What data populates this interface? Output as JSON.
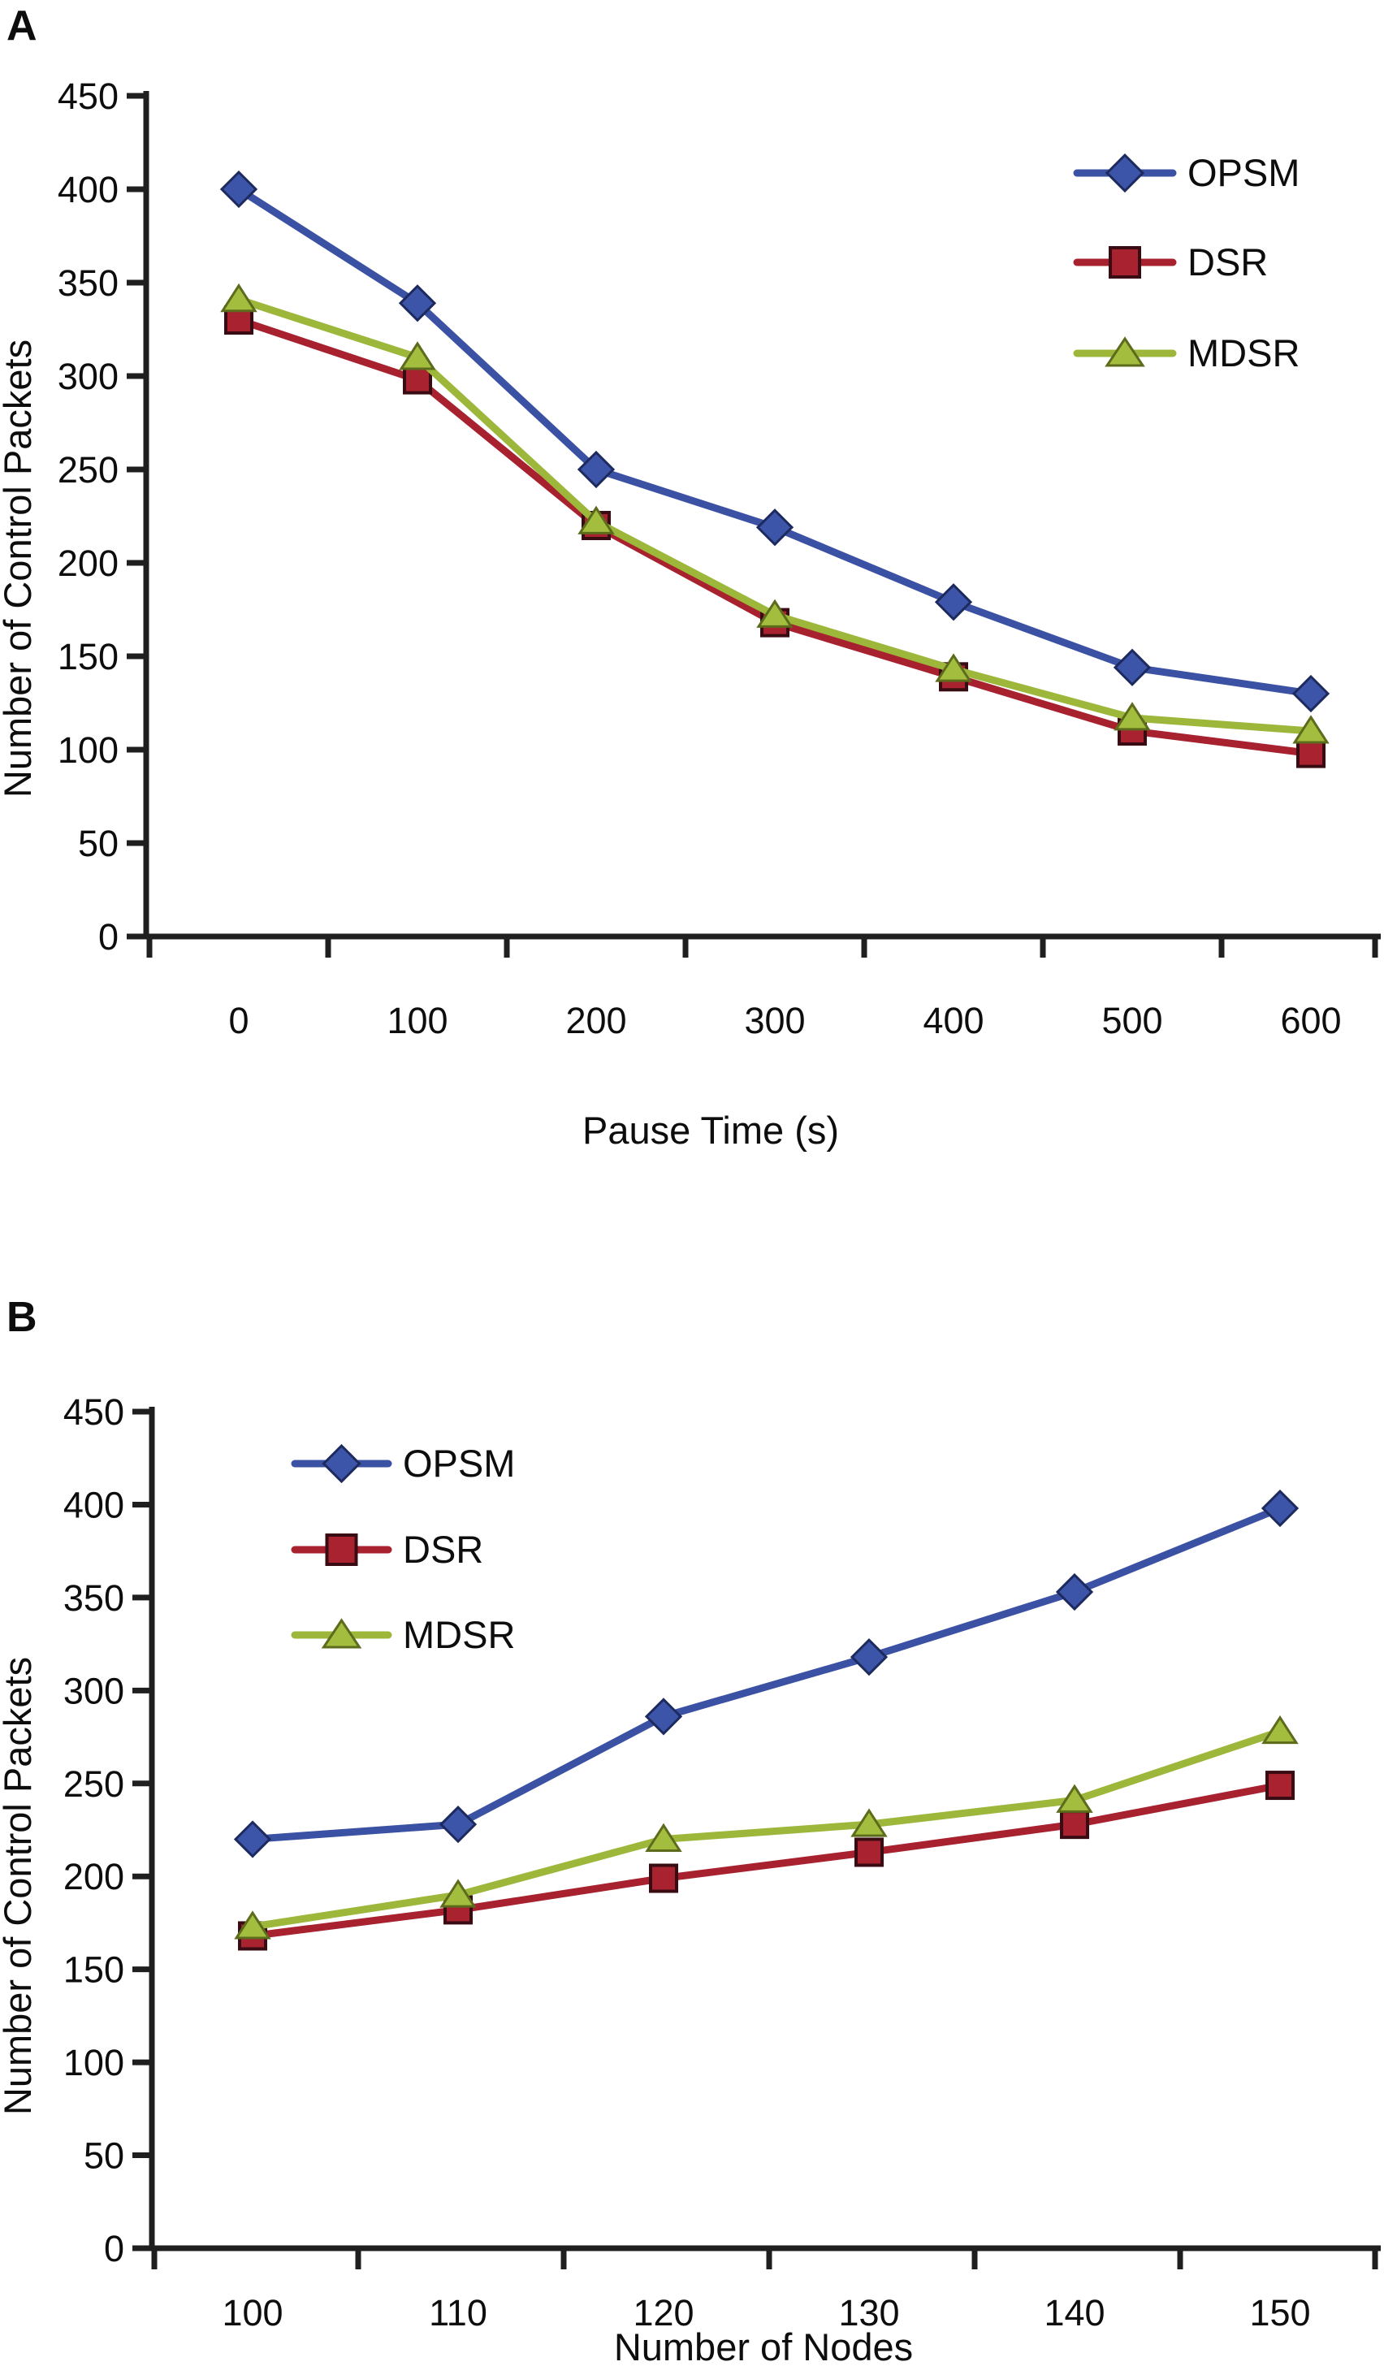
{
  "figure": {
    "background": "#ffffff",
    "text_color": "#0d0d0d",
    "axis_color": "#1f1f1f",
    "panels": [
      {
        "panel_label": "A"
      },
      {
        "panel_label": "B"
      }
    ]
  },
  "chart_data": [
    {
      "type": "line",
      "panel": "A",
      "title": "",
      "xlabel": "Pause Time (s)",
      "ylabel": "Number of Control Packets",
      "categories": [
        0,
        100,
        200,
        300,
        400,
        500,
        600
      ],
      "ylim": [
        0,
        450
      ],
      "ytick_step": 50,
      "grid": false,
      "legend_position": "top-right",
      "legend_entries": [
        "OPSM",
        "DSR",
        "MDSR"
      ],
      "series": [
        {
          "name": "OPSM",
          "marker": "diamond",
          "color": "#3b51a3",
          "marker_fill": "#3d55a8",
          "marker_edge": "#1c2a5e",
          "values": [
            400,
            339,
            250,
            219,
            179,
            144,
            130
          ]
        },
        {
          "name": "DSR",
          "marker": "square",
          "color": "#a7212f",
          "marker_fill": "#a8232f",
          "marker_edge": "#380c12",
          "values": [
            330,
            298,
            220,
            168,
            139,
            110,
            98
          ]
        },
        {
          "name": "MDSR",
          "marker": "triangle",
          "color": "#9cb73a",
          "marker_fill": "#a3bd3e",
          "marker_edge": "#5d6b1c",
          "values": [
            341,
            310,
            222,
            172,
            143,
            117,
            110
          ]
        }
      ]
    },
    {
      "type": "line",
      "panel": "B",
      "title": "",
      "xlabel": "Number of Nodes",
      "ylabel": "Number of Control Packets",
      "categories": [
        100,
        110,
        120,
        130,
        140,
        150
      ],
      "ylim": [
        0,
        450
      ],
      "ytick_step": 50,
      "grid": false,
      "legend_position": "top-left",
      "legend_entries": [
        "OPSM",
        "DSR",
        "MDSR"
      ],
      "series": [
        {
          "name": "OPSM",
          "marker": "diamond",
          "color": "#3b51a3",
          "marker_fill": "#3d55a8",
          "marker_edge": "#1c2a5e",
          "values": [
            220,
            228,
            286,
            318,
            353,
            398
          ]
        },
        {
          "name": "DSR",
          "marker": "square",
          "color": "#a7212f",
          "marker_fill": "#a8232f",
          "marker_edge": "#380c12",
          "values": [
            168,
            182,
            199,
            213,
            228,
            249
          ]
        },
        {
          "name": "MDSR",
          "marker": "triangle",
          "color": "#9cb73a",
          "marker_fill": "#a3bd3e",
          "marker_edge": "#5d6b1c",
          "values": [
            173,
            190,
            220,
            228,
            241,
            278
          ]
        }
      ]
    }
  ]
}
